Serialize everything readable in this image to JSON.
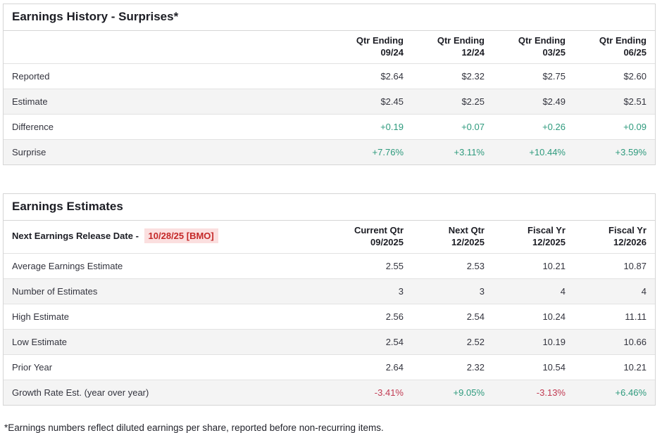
{
  "colors": {
    "positive": "#2e9a7d",
    "negative": "#c13a52",
    "date_red": "#c42828",
    "date_bg": "#fbdfdf"
  },
  "surprises_table": {
    "title": "Earnings History - Surprises*",
    "columns": [
      {
        "line1": "Qtr Ending",
        "line2": "09/24"
      },
      {
        "line1": "Qtr Ending",
        "line2": "12/24"
      },
      {
        "line1": "Qtr Ending",
        "line2": "03/25"
      },
      {
        "line1": "Qtr Ending",
        "line2": "06/25"
      }
    ],
    "rows": [
      {
        "label": "Reported",
        "values": [
          "$2.64",
          "$2.32",
          "$2.75",
          "$2.60"
        ]
      },
      {
        "label": "Estimate",
        "values": [
          "$2.45",
          "$2.25",
          "$2.49",
          "$2.51"
        ]
      },
      {
        "label": "Difference",
        "values": [
          "+0.19",
          "+0.07",
          "+0.26",
          "+0.09"
        ]
      },
      {
        "label": "Surprise",
        "values": [
          "+7.76%",
          "+3.11%",
          "+10.44%",
          "+3.59%"
        ]
      }
    ]
  },
  "estimates_table": {
    "title": "Earnings Estimates",
    "release_date_label": "Next Earnings Release Date -",
    "release_date_value": "10/28/25 [BMO]",
    "columns": [
      {
        "line1": "Current Qtr",
        "line2": "09/2025"
      },
      {
        "line1": "Next Qtr",
        "line2": "12/2025"
      },
      {
        "line1": "Fiscal Yr",
        "line2": "12/2025"
      },
      {
        "line1": "Fiscal Yr",
        "line2": "12/2026"
      }
    ],
    "rows": [
      {
        "label": "Average Earnings Estimate",
        "values": [
          "2.55",
          "2.53",
          "10.21",
          "10.87"
        ]
      },
      {
        "label": "Number of Estimates",
        "values": [
          "3",
          "3",
          "4",
          "4"
        ]
      },
      {
        "label": "High Estimate",
        "values": [
          "2.56",
          "2.54",
          "10.24",
          "11.11"
        ]
      },
      {
        "label": "Low Estimate",
        "values": [
          "2.54",
          "2.52",
          "10.19",
          "10.66"
        ]
      },
      {
        "label": "Prior Year",
        "values": [
          "2.64",
          "2.32",
          "10.54",
          "10.21"
        ]
      },
      {
        "label": "Growth Rate Est. (year over year)",
        "values": [
          "-3.41%",
          "+9.05%",
          "-3.13%",
          "+6.46%"
        ]
      }
    ]
  },
  "footnote": "*Earnings numbers reflect diluted earnings per share, reported before non-recurring items."
}
